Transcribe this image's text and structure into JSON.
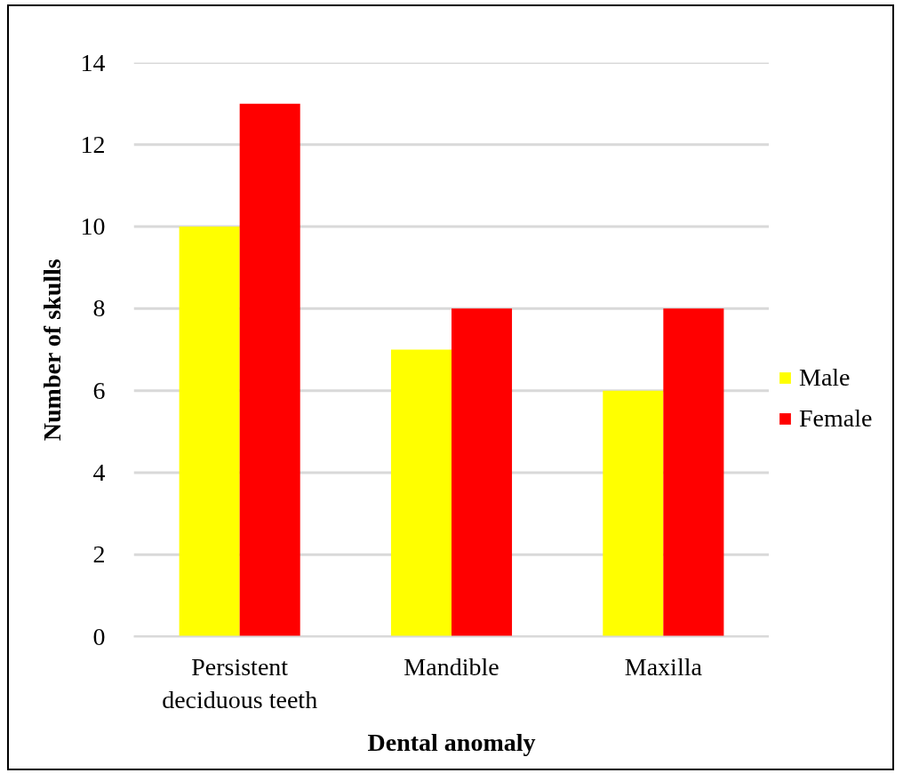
{
  "chart_data": {
    "type": "bar",
    "categories": [
      "Persistent deciduous teeth",
      "Mandible",
      "Maxilla"
    ],
    "series": [
      {
        "name": "Male",
        "color": "#ffff00",
        "values": [
          10,
          7,
          6
        ]
      },
      {
        "name": "Female",
        "color": "#ff0000",
        "values": [
          13,
          8,
          8
        ]
      }
    ],
    "xlabel": "Dental anomaly",
    "ylabel": "Number of skulls",
    "ylim": [
      0,
      14
    ],
    "yticks": [
      0,
      2,
      4,
      6,
      8,
      10,
      12,
      14
    ],
    "grid": "y",
    "legend": "right"
  }
}
